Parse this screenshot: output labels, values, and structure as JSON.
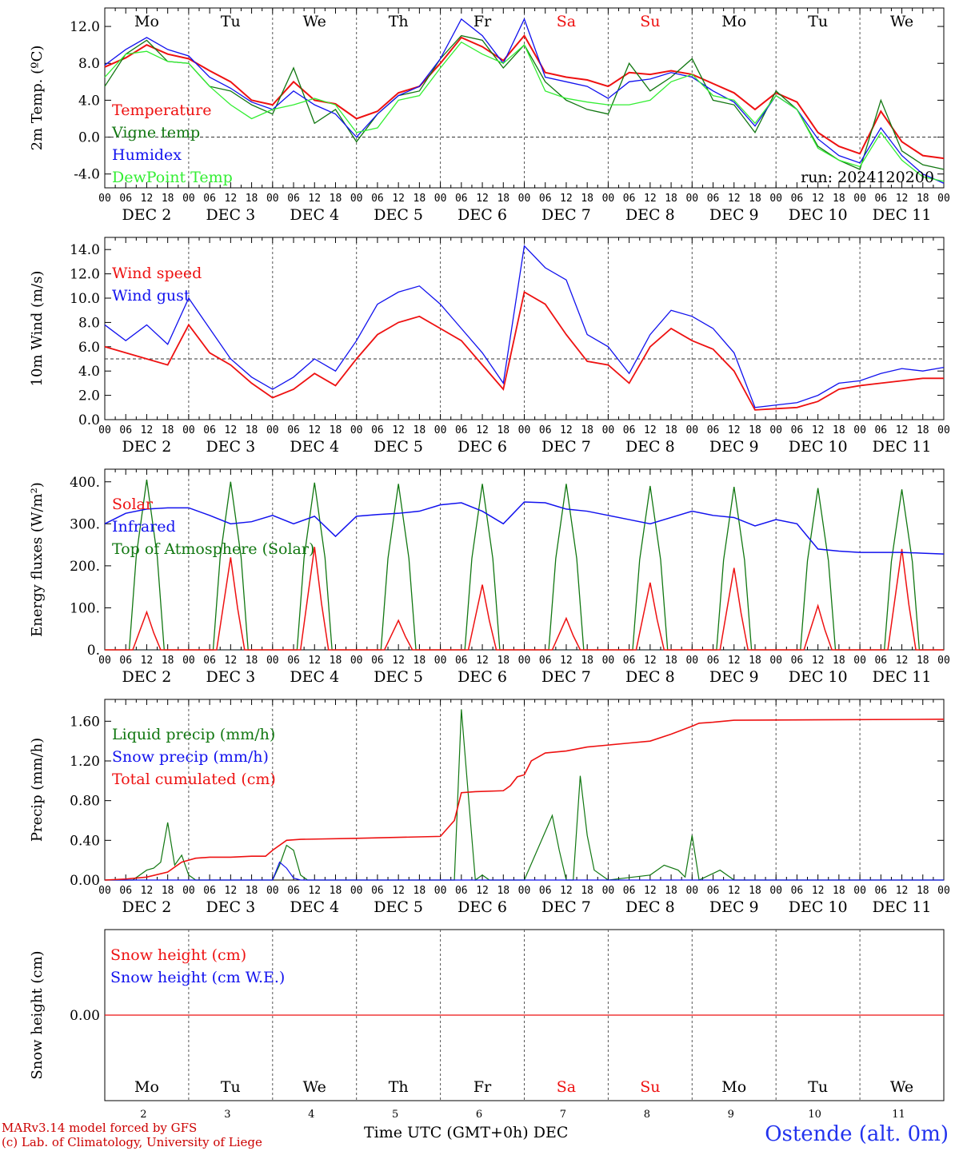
{
  "chart_data": [
    {
      "type": "line",
      "ylabel": "2m Temp. (ºC)",
      "ylim": [
        -5.5,
        14
      ],
      "yticks": [
        "12.0",
        "8.0",
        "4.0",
        "0.0",
        "-4.0"
      ],
      "ytick_values": [
        12,
        8,
        4,
        0,
        -4
      ],
      "ref_line": 0,
      "x_hours": [
        0,
        6,
        12,
        18,
        24,
        30,
        36,
        42,
        48,
        54,
        60,
        66,
        72,
        78,
        84,
        90,
        96,
        102,
        108,
        114,
        120,
        126,
        132,
        138,
        144,
        150,
        156,
        162,
        168,
        174,
        180,
        186,
        192,
        198,
        204,
        210,
        216,
        222,
        228,
        234,
        240
      ],
      "series": [
        {
          "name": "Temperature",
          "color": "#ee1111",
          "values": [
            7.6,
            8.6,
            10.0,
            9.0,
            8.5,
            7.2,
            6.0,
            4.0,
            3.5,
            6.0,
            4.0,
            3.6,
            2.0,
            2.8,
            4.8,
            5.5,
            8.0,
            10.8,
            9.8,
            8.3,
            11.0,
            7.0,
            6.5,
            6.2,
            5.5,
            7.0,
            6.8,
            7.2,
            6.8,
            5.8,
            4.8,
            3.0,
            4.8,
            3.8,
            0.5,
            -1.0,
            -1.8,
            2.8,
            -0.5,
            -2.0,
            -2.3
          ]
        },
        {
          "name": "Vigne temp",
          "color": "#117711",
          "values": [
            5.5,
            9.0,
            10.5,
            8.2,
            8.0,
            5.5,
            5.0,
            3.5,
            2.5,
            7.5,
            1.5,
            3.0,
            -0.5,
            2.5,
            4.5,
            5.0,
            8.5,
            11.0,
            10.5,
            7.5,
            10.0,
            6.0,
            4.0,
            3.0,
            2.5,
            8.0,
            5.0,
            6.5,
            8.5,
            4.0,
            3.5,
            0.5,
            5.0,
            3.0,
            -1.0,
            -2.5,
            -3.5,
            4.0,
            -1.5,
            -3.0,
            -3.5
          ]
        },
        {
          "name": "Humidex",
          "color": "#1111ee",
          "values": [
            7.8,
            9.5,
            10.8,
            9.5,
            8.8,
            6.5,
            5.3,
            3.8,
            3.0,
            5.0,
            3.5,
            2.5,
            0.0,
            2.5,
            4.5,
            5.5,
            8.5,
            12.8,
            11.0,
            8.0,
            12.8,
            6.5,
            6.0,
            5.5,
            4.2,
            6.0,
            6.3,
            7.0,
            6.5,
            5.0,
            3.8,
            1.2,
            4.5,
            3.0,
            -0.2,
            -2.0,
            -2.8,
            1.0,
            -2.0,
            -4.0,
            -5.0
          ]
        },
        {
          "name": "DewPoint Temp",
          "color": "#33ee33",
          "values": [
            6.5,
            9.0,
            9.3,
            8.2,
            8.0,
            5.5,
            3.5,
            2.0,
            3.0,
            3.5,
            4.2,
            3.5,
            0.5,
            1.0,
            4.0,
            4.5,
            7.5,
            10.3,
            9.0,
            8.0,
            10.0,
            5.0,
            4.2,
            3.8,
            3.5,
            3.5,
            4.0,
            6.0,
            6.8,
            4.5,
            4.0,
            1.5,
            4.5,
            3.0,
            -1.2,
            -2.5,
            -3.2,
            0.5,
            -2.5,
            -4.3,
            -4.8
          ]
        }
      ],
      "legend": [
        "Temperature",
        "Vigne temp",
        "Humidex",
        "DewPoint Temp"
      ],
      "annotation": "run: 2024120200"
    },
    {
      "type": "line",
      "ylabel": "10m Wind (m/s)",
      "ylim": [
        0,
        15
      ],
      "yticks": [
        "14.0",
        "12.0",
        "10.0",
        "8.0",
        "6.0",
        "4.0",
        "2.0",
        "0.0"
      ],
      "ytick_values": [
        14,
        12,
        10,
        8,
        6,
        4,
        2,
        0
      ],
      "ref_line": 5,
      "x_hours": [
        0,
        6,
        12,
        18,
        24,
        30,
        36,
        42,
        48,
        54,
        60,
        66,
        72,
        78,
        84,
        90,
        96,
        102,
        108,
        114,
        120,
        126,
        132,
        138,
        144,
        150,
        156,
        162,
        168,
        174,
        180,
        186,
        192,
        198,
        204,
        210,
        216,
        222,
        228,
        234,
        240
      ],
      "series": [
        {
          "name": "Wind speed",
          "color": "#ee1111",
          "values": [
            6.0,
            5.5,
            5.0,
            4.5,
            7.8,
            5.5,
            4.5,
            3.0,
            1.8,
            2.5,
            3.8,
            2.8,
            5.0,
            7.0,
            8.0,
            8.5,
            7.5,
            6.5,
            4.5,
            2.5,
            10.5,
            9.5,
            7.0,
            4.8,
            4.5,
            3.0,
            6.0,
            7.5,
            6.5,
            5.8,
            4.0,
            0.8,
            0.9,
            1.0,
            1.5,
            2.5,
            2.8,
            3.0,
            3.2,
            3.4,
            3.4
          ]
        },
        {
          "name": "Wind gust",
          "color": "#1111ee",
          "values": [
            7.8,
            6.5,
            7.8,
            6.2,
            10.0,
            7.5,
            5.0,
            3.5,
            2.5,
            3.5,
            5.0,
            4.0,
            6.5,
            9.5,
            10.5,
            11.0,
            9.5,
            7.5,
            5.5,
            3.0,
            14.3,
            12.5,
            11.5,
            7.0,
            6.0,
            3.8,
            7.0,
            9.0,
            8.5,
            7.5,
            5.5,
            1.0,
            1.2,
            1.4,
            2.0,
            3.0,
            3.2,
            3.8,
            4.2,
            4.0,
            4.3
          ]
        }
      ],
      "legend": [
        "Wind speed",
        "Wind gust"
      ]
    },
    {
      "type": "line",
      "ylabel": "Energy fluxes (W/m²)",
      "ylim": [
        0,
        430
      ],
      "yticks": [
        "400.",
        "300.",
        "200.",
        "100.",
        "0."
      ],
      "ytick_values": [
        400,
        300,
        200,
        100,
        0
      ],
      "series": [
        {
          "name": "Solar",
          "color": "#ee1111",
          "peaks": [
            90,
            220,
            245,
            70,
            155,
            75,
            160,
            195,
            105,
            240
          ]
        },
        {
          "name": "Infrared",
          "color": "#1111ee",
          "x_hours": [
            0,
            6,
            12,
            18,
            24,
            30,
            36,
            42,
            48,
            54,
            60,
            66,
            72,
            78,
            84,
            90,
            96,
            102,
            108,
            114,
            120,
            126,
            132,
            138,
            144,
            150,
            156,
            162,
            168,
            174,
            180,
            186,
            192,
            198,
            204,
            210,
            216,
            222,
            228,
            234,
            240
          ],
          "values": [
            300,
            325,
            335,
            338,
            338,
            320,
            300,
            305,
            320,
            300,
            318,
            270,
            318,
            322,
            325,
            330,
            345,
            350,
            330,
            300,
            352,
            350,
            335,
            330,
            320,
            310,
            300,
            315,
            330,
            320,
            315,
            295,
            310,
            300,
            240,
            235,
            232,
            232,
            232,
            230,
            228
          ]
        },
        {
          "name": "Top of Atmosphere (Solar)",
          "color": "#117711",
          "peaks": [
            405,
            400,
            398,
            395,
            395,
            395,
            390,
            388,
            385,
            382
          ]
        }
      ],
      "legend": [
        "Solar",
        "Infrared",
        "Top of Atmosphere (Solar)"
      ]
    },
    {
      "type": "line",
      "ylabel": "Precip (mm/h)",
      "ylim": [
        0,
        1.82
      ],
      "yticks": [
        "1.60",
        "1.20",
        "0.80",
        "0.40",
        "0.00"
      ],
      "ytick_values": [
        1.6,
        1.2,
        0.8,
        0.4,
        0
      ],
      "series": [
        {
          "name": "Liquid precip (mm/h)",
          "color": "#117711",
          "x_hours": [
            0,
            8,
            12,
            14,
            16,
            18,
            20,
            22,
            24,
            26,
            30,
            36,
            42,
            48,
            50,
            52,
            54,
            56,
            58,
            60,
            72,
            96,
            100,
            102,
            104,
            106,
            108,
            110,
            120,
            128,
            130,
            132,
            134,
            136,
            138,
            140,
            144,
            156,
            160,
            164,
            166,
            168,
            170,
            176,
            180,
            192,
            240
          ],
          "values": [
            0,
            0,
            0.1,
            0.12,
            0.18,
            0.58,
            0.15,
            0.25,
            0.05,
            0,
            0,
            0,
            0,
            0,
            0.15,
            0.35,
            0.3,
            0.05,
            0,
            0,
            0,
            0,
            0,
            1.72,
            0.85,
            0,
            0.05,
            0,
            0,
            0.65,
            0.3,
            0,
            0,
            1.05,
            0.45,
            0.1,
            0,
            0.05,
            0.15,
            0.1,
            0.03,
            0.45,
            0,
            0.1,
            0,
            0,
            0
          ]
        },
        {
          "name": "Snow precip (mm/h)",
          "color": "#1111ee",
          "x_hours": [
            0,
            48,
            50,
            52,
            54,
            56,
            240
          ],
          "values": [
            0,
            0,
            0.18,
            0.12,
            0.02,
            0,
            0
          ]
        },
        {
          "name": "Total cumulated (cm)",
          "color": "#ee1111",
          "x_hours": [
            0,
            6,
            12,
            18,
            22,
            26,
            30,
            36,
            42,
            46,
            48,
            52,
            56,
            72,
            96,
            100,
            102,
            106,
            114,
            116,
            118,
            120,
            122,
            126,
            132,
            138,
            150,
            156,
            162,
            168,
            170,
            174,
            180,
            240
          ],
          "values": [
            0,
            0.01,
            0.03,
            0.08,
            0.18,
            0.22,
            0.23,
            0.23,
            0.24,
            0.24,
            0.3,
            0.4,
            0.41,
            0.42,
            0.44,
            0.6,
            0.88,
            0.89,
            0.9,
            0.95,
            1.04,
            1.06,
            1.2,
            1.28,
            1.3,
            1.34,
            1.38,
            1.4,
            1.47,
            1.55,
            1.58,
            1.59,
            1.61,
            1.62
          ]
        }
      ],
      "legend": [
        "Liquid precip (mm/h)",
        "Snow precip (mm/h)",
        "Total cumulated (cm)"
      ]
    },
    {
      "type": "line",
      "ylabel": "Snow height (cm)",
      "yticks": [
        "0.00"
      ],
      "series": [
        {
          "name": "Snow height (cm)",
          "color": "#ee1111",
          "values": [
            0,
            0
          ]
        },
        {
          "name": "Snow height (cm W.E.)",
          "color": "#1111ee",
          "values": [
            0,
            0
          ]
        }
      ],
      "legend": [
        "Snow height (cm)",
        "Snow height (cm W.E.)"
      ]
    }
  ],
  "hour_ticks": [
    "00",
    "06",
    "12",
    "18"
  ],
  "hour_end_tick": "00",
  "days": [
    {
      "dow": "Mo",
      "date": "DEC  2",
      "num": "2",
      "weekend": false
    },
    {
      "dow": "Tu",
      "date": "DEC  3",
      "num": "3",
      "weekend": false
    },
    {
      "dow": "We",
      "date": "DEC  4",
      "num": "4",
      "weekend": false
    },
    {
      "dow": "Th",
      "date": "DEC  5",
      "num": "5",
      "weekend": false
    },
    {
      "dow": "Fr",
      "date": "DEC  6",
      "num": "6",
      "weekend": false
    },
    {
      "dow": "Sa",
      "date": "DEC  7",
      "num": "7",
      "weekend": true
    },
    {
      "dow": "Su",
      "date": "DEC  8",
      "num": "8",
      "weekend": true
    },
    {
      "dow": "Mo",
      "date": "DEC  9",
      "num": "9",
      "weekend": false
    },
    {
      "dow": "Tu",
      "date": "DEC 10",
      "num": "10",
      "weekend": false
    },
    {
      "dow": "We",
      "date": "DEC 11",
      "num": "11",
      "weekend": false
    }
  ],
  "colors": {
    "weekday": "#000000",
    "weekend": "#ee1111",
    "grid": "#555555"
  },
  "footer": {
    "model": "MARv3.14 model forced by GFS",
    "copyright": "(c) Lab. of Climatology, University of Liege",
    "xaxis_title": "Time UTC (GMT+0h) DEC",
    "station": "Ostende (alt. 0m)"
  }
}
